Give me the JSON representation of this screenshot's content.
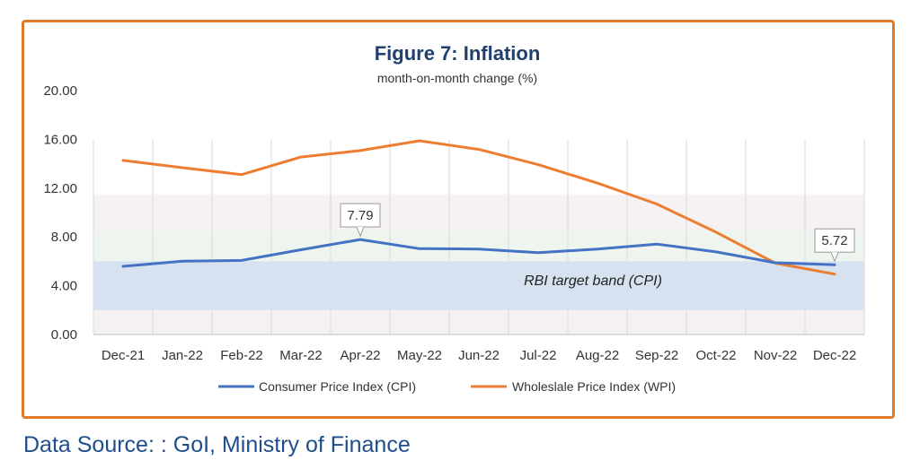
{
  "chart_data": {
    "type": "line",
    "title": "Figure 7: Inflation",
    "subtitle": "month-on-month change (%)",
    "categories": [
      "Dec-21",
      "Jan-22",
      "Feb-22",
      "Mar-22",
      "Apr-22",
      "May-22",
      "Jun-22",
      "Jul-22",
      "Aug-22",
      "Sep-22",
      "Oct-22",
      "Nov-22",
      "Dec-22"
    ],
    "y_ticks": [
      "0.00",
      "4.00",
      "8.00",
      "12.00",
      "16.00",
      "20.00"
    ],
    "ylim": [
      0,
      20
    ],
    "series": [
      {
        "name": "Consumer Price Index (CPI)",
        "color": "#4472c4",
        "values": [
          5.59,
          6.01,
          6.07,
          6.95,
          7.79,
          7.04,
          7.01,
          6.71,
          7.0,
          7.41,
          6.77,
          5.88,
          5.72
        ]
      },
      {
        "name": "Wholeslale Price Index (WPI)",
        "color": "#ed7d31",
        "values": [
          14.27,
          13.68,
          13.11,
          14.55,
          15.08,
          15.88,
          15.18,
          13.93,
          12.41,
          10.7,
          8.39,
          5.85,
          4.95
        ]
      }
    ],
    "annotations": [
      {
        "series": 0,
        "index": 4,
        "text": "7.79"
      },
      {
        "series": 0,
        "index": 12,
        "text": "5.72"
      }
    ],
    "band": {
      "from": 2,
      "to": 6,
      "label": "RBI target band (CPI)",
      "color": "#d6e2ef"
    },
    "grid": "vertical",
    "legend_position": "bottom"
  },
  "source": "Data Source: : GoI, Ministry of Finance"
}
